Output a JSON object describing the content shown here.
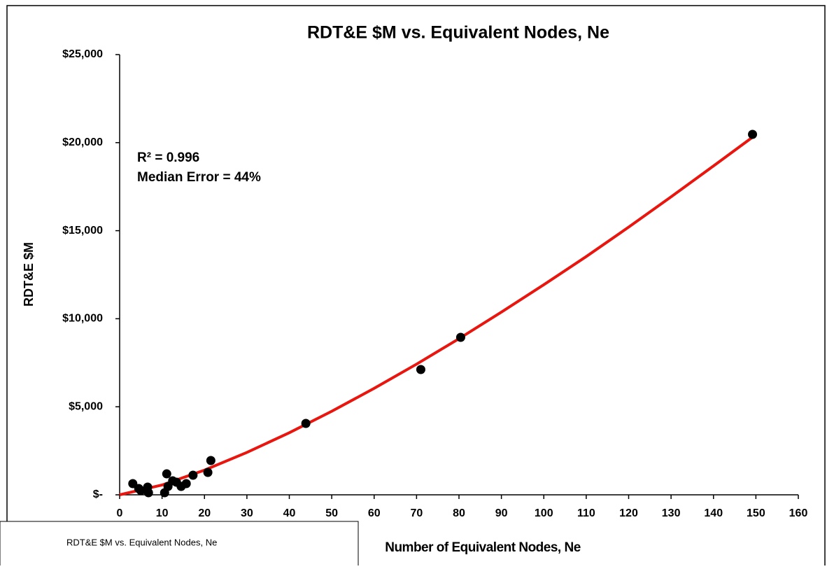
{
  "chart_data": {
    "type": "scatter",
    "title": "RDT&E $M vs. Equivalent Nodes, Ne",
    "x_label": "Number of Equivalent Nodes, Ne",
    "y_label": "RDT&E $M",
    "annotations": [
      "R² = 0.996",
      "Median Error = 44%"
    ],
    "tooltip": "RDT&E $M vs. Equivalent Nodes, Ne",
    "xlim": [
      0,
      160
    ],
    "xticks": [
      0,
      10,
      20,
      30,
      40,
      50,
      60,
      70,
      80,
      90,
      100,
      110,
      120,
      130,
      140,
      150,
      160
    ],
    "ylim": [
      0,
      25000
    ],
    "yticks": [
      {
        "value": 0,
        "label": "$-"
      },
      {
        "value": 5000,
        "label": "$5,000"
      },
      {
        "value": 10000,
        "label": "$10,000"
      },
      {
        "value": 15000,
        "label": "$15,000"
      },
      {
        "value": 20000,
        "label": "$20,000"
      },
      {
        "value": 25000,
        "label": "$25,000"
      }
    ],
    "series": [
      {
        "kind": "points",
        "color": "#000000",
        "x": [
          3.1,
          4.5,
          5,
          6.6,
          6.8,
          10.6,
          11.1,
          11.4,
          12.5,
          13.4,
          14.5,
          15.7,
          17.3,
          20.8,
          21.5,
          43.9,
          71,
          80.4,
          149.2
        ],
        "values": [
          636,
          358,
          240,
          437,
          120,
          120,
          1190,
          477,
          795,
          715,
          477,
          636,
          1113,
          1272,
          1948,
          4054,
          7114,
          8943,
          20469
        ]
      },
      {
        "kind": "line",
        "color": "#e8160e",
        "x": [
          0,
          10,
          20,
          30,
          40,
          50,
          60,
          70,
          80,
          90,
          100,
          110,
          120,
          130,
          140,
          150
        ],
        "values": [
          0,
          558,
          1402,
          2406,
          3526,
          4745,
          6045,
          7420,
          8866,
          10377,
          11931,
          13530,
          15203,
          16921,
          18677,
          20450
        ]
      }
    ]
  }
}
